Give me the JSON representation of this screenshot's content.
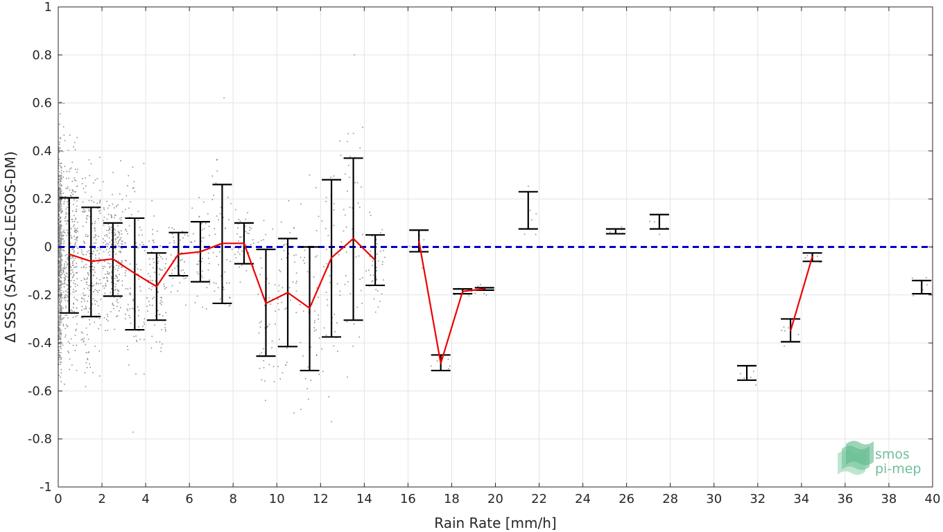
{
  "chart_data": {
    "type": "scatter",
    "title": "",
    "xlabel": "Rain Rate [mm/h]",
    "ylabel": "Δ SSS (SAT-TSG-LEGOS-DM)",
    "xlim": [
      0,
      40
    ],
    "ylim": [
      -1,
      1
    ],
    "xticks": [
      0,
      2,
      4,
      6,
      8,
      10,
      12,
      14,
      16,
      18,
      20,
      22,
      24,
      26,
      28,
      30,
      32,
      34,
      36,
      38,
      40
    ],
    "xtick_labels": [
      "0",
      "2",
      "4",
      "6",
      "8",
      "10",
      "12",
      "14",
      "16",
      "18",
      "20",
      "22",
      "24",
      "26",
      "28",
      "30",
      "32",
      "34",
      "36",
      "38",
      "40"
    ],
    "yticks": [
      -1,
      -0.8,
      -0.6,
      -0.4,
      -0.2,
      0,
      0.2,
      0.4,
      0.6,
      0.8,
      1
    ],
    "ytick_labels": [
      "-1",
      "-0.8",
      "-0.6",
      "-0.4",
      "-0.2",
      "0",
      "0.2",
      "0.4",
      "0.6",
      "0.8",
      "1"
    ],
    "grid": true,
    "reference_line": {
      "y": 0,
      "color": "#0000cc",
      "style": "dashed"
    },
    "mean_color": "#ee0000",
    "errorbar_color": "#000000",
    "scatter_color": "#8c8c8c",
    "bins": [
      {
        "x": 0.5,
        "mean": -0.03,
        "low": -0.275,
        "high": 0.205
      },
      {
        "x": 1.5,
        "mean": -0.06,
        "low": -0.29,
        "high": 0.165
      },
      {
        "x": 2.5,
        "mean": -0.05,
        "low": -0.205,
        "high": 0.1
      },
      {
        "x": 3.5,
        "mean": -0.11,
        "low": -0.345,
        "high": 0.12
      },
      {
        "x": 4.5,
        "mean": -0.165,
        "low": -0.305,
        "high": -0.025
      },
      {
        "x": 5.5,
        "mean": -0.03,
        "low": -0.12,
        "high": 0.06
      },
      {
        "x": 6.5,
        "mean": -0.02,
        "low": -0.145,
        "high": 0.105
      },
      {
        "x": 7.5,
        "mean": 0.015,
        "low": -0.235,
        "high": 0.26
      },
      {
        "x": 8.5,
        "mean": 0.015,
        "low": -0.07,
        "high": 0.1
      },
      {
        "x": 9.5,
        "mean": -0.235,
        "low": -0.455,
        "high": -0.01
      },
      {
        "x": 10.5,
        "mean": -0.19,
        "low": -0.415,
        "high": 0.035
      },
      {
        "x": 11.5,
        "mean": -0.255,
        "low": -0.515,
        "high": 0.0
      },
      {
        "x": 12.5,
        "mean": -0.045,
        "low": -0.375,
        "high": 0.28
      },
      {
        "x": 13.5,
        "mean": 0.035,
        "low": -0.305,
        "high": 0.37
      },
      {
        "x": 14.5,
        "mean": -0.055,
        "low": -0.16,
        "high": 0.05
      },
      {
        "x": 16.5,
        "mean": 0.025,
        "low": -0.02,
        "high": 0.07
      },
      {
        "x": 17.5,
        "mean": -0.485,
        "low": -0.515,
        "high": -0.45
      },
      {
        "x": 18.5,
        "mean": -0.185,
        "low": -0.195,
        "high": -0.175
      },
      {
        "x": 19.5,
        "mean": -0.175,
        "low": -0.18,
        "high": -0.17
      },
      {
        "x": 21.5,
        "mean": 0.155,
        "low": 0.075,
        "high": 0.23
      },
      {
        "x": 25.5,
        "mean": 0.065,
        "low": 0.055,
        "high": 0.075
      },
      {
        "x": 27.5,
        "mean": 0.105,
        "low": 0.075,
        "high": 0.135
      },
      {
        "x": 31.5,
        "mean": -0.525,
        "low": -0.555,
        "high": -0.495
      },
      {
        "x": 33.5,
        "mean": -0.35,
        "low": -0.395,
        "high": -0.3
      },
      {
        "x": 34.5,
        "mean": -0.04,
        "low": -0.06,
        "high": -0.025
      },
      {
        "x": 39.5,
        "mean": -0.165,
        "low": -0.195,
        "high": -0.14
      }
    ],
    "mean_line_segments": [
      [
        0.5,
        1.5,
        2.5,
        3.5,
        4.5,
        5.5,
        6.5,
        7.5,
        8.5,
        9.5,
        10.5,
        11.5,
        12.5,
        13.5,
        14.5
      ],
      [
        16.5,
        17.5,
        18.5,
        19.5
      ],
      [
        33.5,
        34.5
      ]
    ]
  },
  "logo": {
    "line1": "smos",
    "line2": "pi-mep"
  }
}
